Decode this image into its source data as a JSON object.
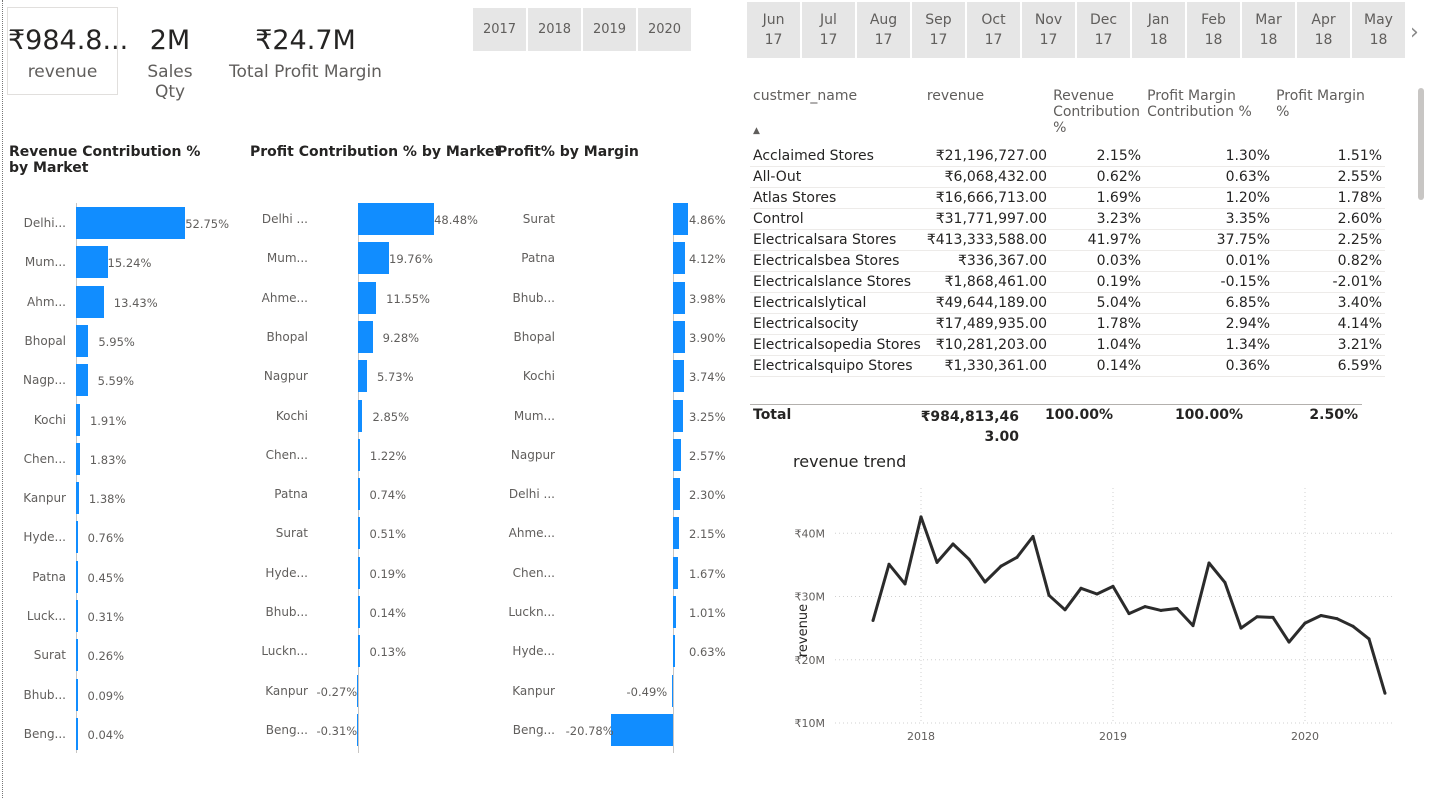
{
  "cards": [
    {
      "value": "₹984.8...",
      "label": "revenue"
    },
    {
      "value": "2M",
      "label": "Sales Qty"
    },
    {
      "value": "₹24.7M",
      "label": "Total Profit Margin"
    }
  ],
  "year_slicer": [
    "2017",
    "2018",
    "2019",
    "2020"
  ],
  "month_slicer": [
    "Jun\n17",
    "Jul\n17",
    "Aug\n17",
    "Sep\n17",
    "Oct\n17",
    "Nov\n17",
    "Dec\n17",
    "Jan\n18",
    "Feb\n18",
    "Mar\n18",
    "Apr\n18",
    "May\n18"
  ],
  "charts": {
    "revenue_contribution": {
      "title": "Revenue Contribution % by Market",
      "categories": [
        "Delhi...",
        "Mum...",
        "Ahm...",
        "Bhopal",
        "Nagp...",
        "Kochi",
        "Chen...",
        "Kanpur",
        "Hyde...",
        "Patna",
        "Luck...",
        "Surat",
        "Bhub...",
        "Beng..."
      ],
      "values": [
        52.75,
        15.24,
        13.43,
        5.95,
        5.59,
        1.91,
        1.83,
        1.38,
        0.76,
        0.45,
        0.31,
        0.26,
        0.09,
        0.04
      ],
      "labels": [
        "52.75%",
        "15.24%",
        "13.43%",
        "5.95%",
        "5.59%",
        "1.91%",
        "1.83%",
        "1.38%",
        "0.76%",
        "0.45%",
        "0.31%",
        "0.26%",
        "0.09%",
        "0.04%"
      ]
    },
    "profit_contribution": {
      "title": "Profit Contribution % by Market",
      "categories": [
        "Delhi ...",
        "Mum...",
        "Ahme...",
        "Bhopal",
        "Nagpur",
        "Kochi",
        "Chen...",
        "Patna",
        "Surat",
        "Hyde...",
        "Bhub...",
        "Luckn...",
        "Kanpur",
        "Beng..."
      ],
      "values": [
        48.48,
        19.76,
        11.55,
        9.28,
        5.73,
        2.85,
        1.22,
        0.74,
        0.51,
        0.19,
        0.14,
        0.13,
        -0.27,
        -0.31
      ],
      "labels": [
        "48.48%",
        "19.76%",
        "11.55%",
        "9.28%",
        "5.73%",
        "2.85%",
        "1.22%",
        "0.74%",
        "0.51%",
        "0.19%",
        "0.14%",
        "0.13%",
        "-0.27%",
        "-0.31%"
      ]
    },
    "profit_by_margin": {
      "title": "Profit% by Margin",
      "categories": [
        "Surat",
        "Patna",
        "Bhub...",
        "Bhopal",
        "Kochi",
        "Mum...",
        "Nagpur",
        "Delhi ...",
        "Ahme...",
        "Chen...",
        "Luckn...",
        "Hyde...",
        "Kanpur",
        "Beng..."
      ],
      "values": [
        4.86,
        4.12,
        3.98,
        3.9,
        3.74,
        3.25,
        2.57,
        2.3,
        2.15,
        1.67,
        1.01,
        0.63,
        -0.49,
        -20.78
      ],
      "labels": [
        "4.86%",
        "4.12%",
        "3.98%",
        "3.90%",
        "3.74%",
        "3.25%",
        "2.57%",
        "2.30%",
        "2.15%",
        "1.67%",
        "1.01%",
        "0.63%",
        "-0.49%",
        "-20.78%"
      ]
    }
  },
  "table": {
    "headers": [
      "custmer_name",
      "revenue",
      "Revenue Contribution %",
      "Profit Margin Contribution %",
      "Profit Margin %"
    ],
    "rows": [
      [
        "Acclaimed Stores",
        "₹21,196,727.00",
        "2.15%",
        "1.30%",
        "1.51%"
      ],
      [
        "All-Out",
        "₹6,068,432.00",
        "0.62%",
        "0.63%",
        "2.55%"
      ],
      [
        "Atlas Stores",
        "₹16,666,713.00",
        "1.69%",
        "1.20%",
        "1.78%"
      ],
      [
        "Control",
        "₹31,771,997.00",
        "3.23%",
        "3.35%",
        "2.60%"
      ],
      [
        "Electricalsara Stores",
        "₹413,333,588.00",
        "41.97%",
        "37.75%",
        "2.25%"
      ],
      [
        "Electricalsbea Stores",
        "₹336,367.00",
        "0.03%",
        "0.01%",
        "0.82%"
      ],
      [
        "Electricalslance Stores",
        "₹1,868,461.00",
        "0.19%",
        "-0.15%",
        "-2.01%"
      ],
      [
        "Electricalslytical",
        "₹49,644,189.00",
        "5.04%",
        "6.85%",
        "3.40%"
      ],
      [
        "Electricalsocity",
        "₹17,489,935.00",
        "1.78%",
        "2.94%",
        "4.14%"
      ],
      [
        "Electricalsopedia Stores",
        "₹10,281,203.00",
        "1.04%",
        "1.34%",
        "3.21%"
      ],
      [
        "Electricalsquipo Stores",
        "₹1,330,361.00",
        "0.14%",
        "0.36%",
        "6.59%"
      ]
    ],
    "total": [
      "Total",
      "₹984,813,463.00",
      "100.00%",
      "100.00%",
      "2.50%"
    ]
  },
  "chart_data": {
    "type": "line",
    "title": "revenue trend",
    "ylabel": "revenue",
    "xlabel": "",
    "x_ticks": [
      "2018",
      "2019",
      "2020"
    ],
    "y_ticks": [
      "₹10M",
      "₹20M",
      "₹30M",
      "₹40M"
    ],
    "ylim": [
      10,
      44
    ],
    "series": [
      {
        "values": [
          26.2,
          35.1,
          32.0,
          42.6,
          35.4,
          38.3,
          35.9,
          32.3,
          34.8,
          36.2,
          39.5,
          30.2,
          27.9,
          31.3,
          30.4,
          31.6,
          27.3,
          28.4,
          27.8,
          28.1,
          25.4,
          35.3,
          32.2,
          25.0,
          26.8,
          26.7,
          22.8,
          25.8,
          27.0,
          26.5,
          25.3,
          23.3,
          14.7
        ]
      }
    ]
  }
}
